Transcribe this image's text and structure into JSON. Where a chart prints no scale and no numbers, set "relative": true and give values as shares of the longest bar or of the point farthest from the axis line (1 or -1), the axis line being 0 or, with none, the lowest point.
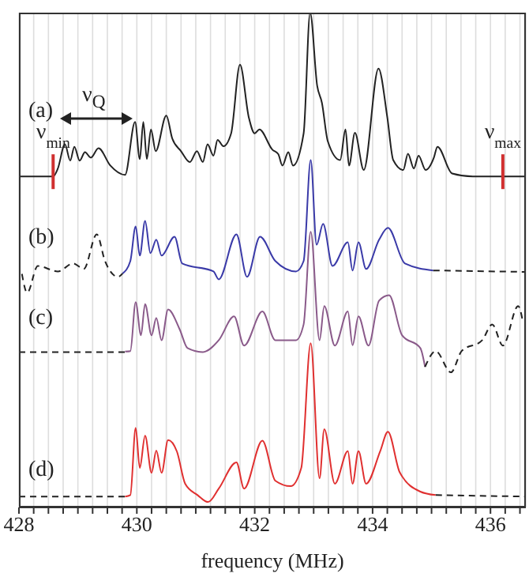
{
  "chart_data": {
    "type": "line",
    "relative": true,
    "xlabel": "frequency  (MHz)",
    "xlim": [
      428,
      436.6
    ],
    "xticks": [
      428,
      {
        "value": 428.25,
        "label": null
      },
      {
        "value": 428.5,
        "label": null
      },
      {
        "value": 428.75,
        "label": null
      },
      {
        "value": 429,
        "label": null
      },
      {
        "value": 429.25,
        "label": null
      },
      {
        "value": 429.5,
        "label": null
      },
      {
        "value": 429.75,
        "label": null
      },
      430,
      {
        "value": 430.25,
        "label": null
      },
      {
        "value": 430.5,
        "label": null
      },
      {
        "value": 430.75,
        "label": null
      },
      {
        "value": 431,
        "label": null
      },
      {
        "value": 431.25,
        "label": null
      },
      {
        "value": 431.5,
        "label": null
      },
      {
        "value": 431.75,
        "label": null
      },
      432,
      {
        "value": 432.25,
        "label": null
      },
      {
        "value": 432.5,
        "label": null
      },
      {
        "value": 432.75,
        "label": null
      },
      {
        "value": 433,
        "label": null
      },
      {
        "value": 433.25,
        "label": null
      },
      {
        "value": 433.5,
        "label": null
      },
      {
        "value": 433.75,
        "label": null
      },
      434,
      {
        "value": 434.25,
        "label": null
      },
      {
        "value": 434.5,
        "label": null
      },
      {
        "value": 434.75,
        "label": null
      },
      {
        "value": 435,
        "label": null
      },
      {
        "value": 435.25,
        "label": null
      },
      {
        "value": 435.5,
        "label": null
      },
      {
        "value": 435.75,
        "label": null
      },
      436,
      {
        "value": 436.25,
        "label": null
      },
      {
        "value": 436.5,
        "label": null
      }
    ],
    "grid": "x",
    "series": [
      {
        "color": "#222222",
        "x": [
          428.0,
          428.58,
          428.66,
          428.78,
          428.87,
          428.94,
          429.03,
          429.12,
          429.22,
          429.35,
          429.55,
          429.8,
          429.97,
          430.05,
          430.11,
          430.17,
          430.24,
          430.32,
          430.5,
          430.6,
          430.75,
          430.9,
          431.02,
          431.12,
          431.2,
          431.3,
          431.37,
          431.47,
          431.6,
          431.75,
          431.9,
          432.0,
          432.08,
          432.3,
          432.4,
          432.47,
          432.57,
          432.65,
          432.83,
          432.94,
          433.06,
          433.14,
          433.24,
          433.45,
          433.54,
          433.6,
          433.7,
          433.85,
          434.1,
          434.25,
          434.35,
          434.52,
          434.6,
          434.7,
          434.78,
          434.9,
          435.04,
          435.1,
          435.35,
          435.7,
          436.6
        ],
        "values": [
          0.669,
          0.669,
          0.685,
          0.734,
          0.701,
          0.729,
          0.701,
          0.718,
          0.707,
          0.726,
          0.691,
          0.672,
          0.779,
          0.704,
          0.779,
          0.704,
          0.764,
          0.72,
          0.792,
          0.746,
          0.72,
          0.698,
          0.72,
          0.698,
          0.734,
          0.711,
          0.743,
          0.73,
          0.756,
          0.895,
          0.788,
          0.756,
          0.764,
          0.723,
          0.714,
          0.691,
          0.718,
          0.691,
          0.756,
          1.0,
          0.852,
          0.818,
          0.74,
          0.702,
          0.764,
          0.691,
          0.757,
          0.682,
          0.887,
          0.788,
          0.702,
          0.682,
          0.715,
          0.685,
          0.711,
          0.682,
          0.707,
          0.729,
          0.675,
          0.669,
          0.669
        ]
      },
      {
        "color": "#222222",
        "line_style": "dashed",
        "x": [
          428.05,
          428.14,
          428.32,
          428.66,
          428.92,
          429.1,
          429.32,
          429.46,
          429.68,
          429.76
        ],
        "values": [
          0.472,
          0.434,
          0.488,
          0.477,
          0.493,
          0.482,
          0.552,
          0.498,
          0.466,
          0.473
        ]
      },
      {
        "color": "#3a3aa8",
        "x": [
          429.76,
          429.89,
          429.98,
          430.05,
          430.14,
          430.23,
          430.33,
          430.42,
          430.64,
          430.77,
          431.3,
          431.39,
          431.69,
          431.87,
          432.09,
          432.35,
          432.7,
          432.83,
          432.95,
          433.05,
          433.16,
          433.32,
          433.58,
          433.66,
          433.76,
          433.89,
          434.11,
          434.26,
          434.55,
          435.03
        ],
        "values": [
          0.473,
          0.498,
          0.568,
          0.509,
          0.579,
          0.514,
          0.541,
          0.509,
          0.547,
          0.493,
          0.477,
          0.461,
          0.552,
          0.466,
          0.547,
          0.498,
          0.477,
          0.498,
          0.702,
          0.531,
          0.573,
          0.488,
          0.536,
          0.479,
          0.536,
          0.482,
          0.541,
          0.565,
          0.493,
          0.479
        ]
      },
      {
        "color": "#222222",
        "line_style": "dashed",
        "x": [
          435.03,
          436.6
        ],
        "values": [
          0.479,
          0.476
        ]
      },
      {
        "color": "#222222",
        "line_style": "dashed",
        "x": [
          428.0,
          429.8
        ],
        "values": [
          0.314,
          0.314
        ]
      },
      {
        "color": "#8a5a8a",
        "x": [
          429.8,
          429.89,
          429.98,
          430.07,
          430.14,
          430.25,
          430.33,
          430.42,
          430.53,
          430.73,
          430.86,
          431.12,
          431.39,
          431.65,
          431.82,
          432.13,
          432.35,
          432.7,
          432.83,
          432.95,
          433.1,
          433.18,
          433.36,
          433.58,
          433.66,
          433.76,
          433.93,
          434.11,
          434.28,
          434.5,
          434.81,
          434.89
        ],
        "values": [
          0.315,
          0.316,
          0.415,
          0.348,
          0.411,
          0.348,
          0.383,
          0.338,
          0.4,
          0.359,
          0.322,
          0.314,
          0.338,
          0.386,
          0.327,
          0.396,
          0.338,
          0.338,
          0.37,
          0.557,
          0.338,
          0.407,
          0.327,
          0.396,
          0.328,
          0.386,
          0.327,
          0.418,
          0.429,
          0.348,
          0.322,
          0.284
        ]
      },
      {
        "color": "#222222",
        "line_style": "dashed",
        "x": [
          434.89,
          435.07,
          435.33,
          435.51,
          435.86,
          436.03,
          436.21,
          436.47,
          436.55
        ],
        "values": [
          0.284,
          0.316,
          0.273,
          0.316,
          0.338,
          0.37,
          0.327,
          0.407,
          0.375
        ]
      },
      {
        "color": "#222222",
        "line_style": "dashed",
        "x": [
          428.0,
          429.8
        ],
        "values": [
          0.022,
          0.022
        ]
      },
      {
        "color": "#e03030",
        "x": [
          429.8,
          429.89,
          429.98,
          430.05,
          430.14,
          430.25,
          430.33,
          430.42,
          430.53,
          430.68,
          430.82,
          431.03,
          431.21,
          431.39,
          431.69,
          431.82,
          432.13,
          432.35,
          432.61,
          432.79,
          432.95,
          433.1,
          433.18,
          433.36,
          433.58,
          433.66,
          433.76,
          433.89,
          434.13,
          434.26,
          434.46,
          434.81,
          435.07
        ],
        "values": [
          0.022,
          0.025,
          0.161,
          0.08,
          0.145,
          0.07,
          0.115,
          0.07,
          0.136,
          0.113,
          0.048,
          0.025,
          0.011,
          0.038,
          0.091,
          0.038,
          0.135,
          0.054,
          0.043,
          0.08,
          0.332,
          0.059,
          0.158,
          0.048,
          0.114,
          0.048,
          0.114,
          0.048,
          0.114,
          0.153,
          0.071,
          0.032,
          0.025
        ]
      },
      {
        "color": "#222222",
        "line_style": "dashed",
        "x": [
          435.07,
          436.6
        ],
        "values": [
          0.025,
          0.022
        ]
      }
    ],
    "annotations": [
      "(a)",
      "(b)",
      "(c)",
      "(d)",
      {
        "text": "ν$_{min}$",
        "x": 428.58,
        "y": 0.669
      },
      {
        "text": "ν$_{max}$",
        "x": 436.21,
        "y": 0.669
      },
      "ν$_{Q}$"
    ]
  }
}
